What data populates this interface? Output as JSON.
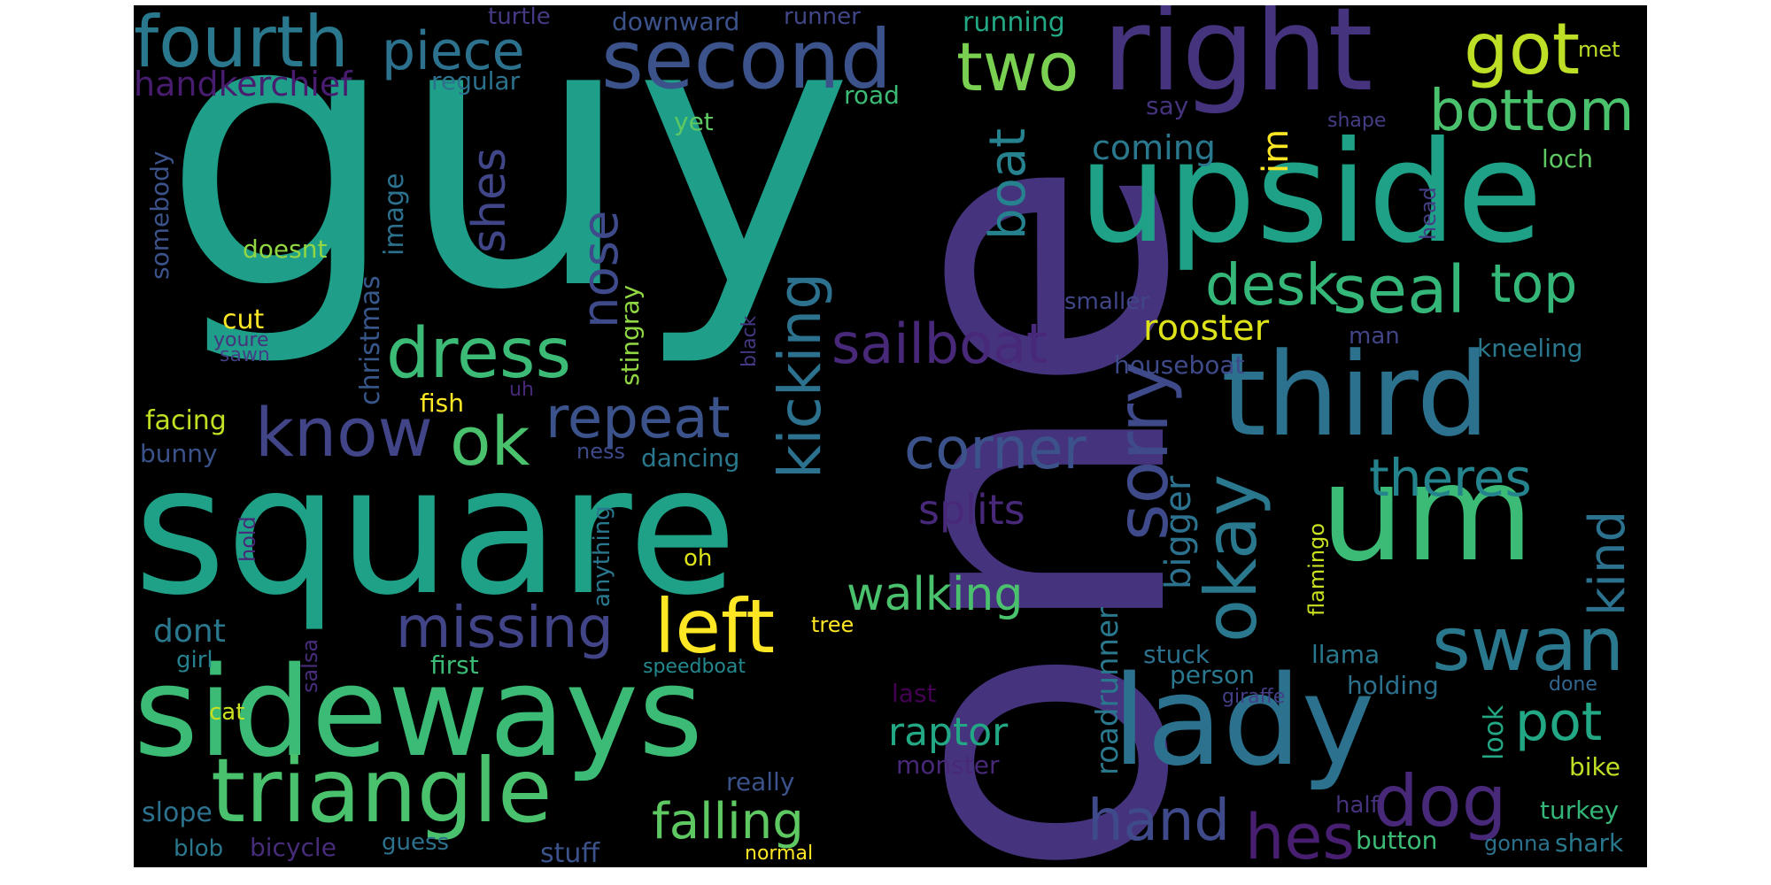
{
  "words": [
    {
      "text": "guy",
      "color": "#1f9e89"
    },
    {
      "text": "one",
      "color": "#46337e"
    },
    {
      "text": "square",
      "color": "#1fa188"
    },
    {
      "text": "sideways",
      "color": "#3bbb75"
    },
    {
      "text": "upside",
      "color": "#1fa188"
    },
    {
      "text": "right",
      "color": "#46337e"
    },
    {
      "text": "third",
      "color": "#2c728e"
    },
    {
      "text": "um",
      "color": "#3bbb75"
    },
    {
      "text": "lady",
      "color": "#2c728e"
    },
    {
      "text": "triangle",
      "color": "#4ac16d"
    },
    {
      "text": "second",
      "color": "#3b528b"
    },
    {
      "text": "fourth",
      "color": "#2a788e"
    },
    {
      "text": "piece",
      "color": "#2c728e"
    },
    {
      "text": "two",
      "color": "#7ad151"
    },
    {
      "text": "got",
      "color": "#bddf26"
    },
    {
      "text": "bottom",
      "color": "#4ac16d"
    },
    {
      "text": "dress",
      "color": "#3bbb75"
    },
    {
      "text": "know",
      "color": "#414487"
    },
    {
      "text": "ok",
      "color": "#4ac16d"
    },
    {
      "text": "left",
      "color": "#fde725"
    },
    {
      "text": "missing",
      "color": "#414487"
    },
    {
      "text": "sailboat",
      "color": "#482878"
    },
    {
      "text": "corner",
      "color": "#3b528b"
    },
    {
      "text": "repeat",
      "color": "#3b528b"
    },
    {
      "text": "kicking",
      "color": "#2c728e"
    },
    {
      "text": "sorry",
      "color": "#3e4a89"
    },
    {
      "text": "okay",
      "color": "#2a788e"
    },
    {
      "text": "swan",
      "color": "#2a788e"
    },
    {
      "text": "seal",
      "color": "#35b779"
    },
    {
      "text": "desk",
      "color": "#35b779"
    },
    {
      "text": "top",
      "color": "#35b779"
    },
    {
      "text": "dog",
      "color": "#482878"
    },
    {
      "text": "pot",
      "color": "#22a884"
    },
    {
      "text": "hand",
      "color": "#3e4a89"
    },
    {
      "text": "hes",
      "color": "#481f70"
    },
    {
      "text": "falling",
      "color": "#5ec962"
    },
    {
      "text": "walking",
      "color": "#4ac16d"
    },
    {
      "text": "theres",
      "color": "#25838e"
    },
    {
      "text": "kind",
      "color": "#2c728e"
    },
    {
      "text": "boat",
      "color": "#26828e"
    },
    {
      "text": "nose",
      "color": "#3e4a89"
    },
    {
      "text": "shes",
      "color": "#404688"
    },
    {
      "text": "splits",
      "color": "#482878"
    },
    {
      "text": "raptor",
      "color": "#22a884"
    },
    {
      "text": "rooster",
      "color": "#dde318"
    },
    {
      "text": "coming",
      "color": "#2a788e"
    },
    {
      "text": "bigger",
      "color": "#2c728e"
    },
    {
      "text": "dont",
      "color": "#2a788e"
    },
    {
      "text": "im",
      "color": "#fde725"
    },
    {
      "text": "handkerchief",
      "color": "#481c6e"
    },
    {
      "text": "roadrunner",
      "color": "#2a788e"
    },
    {
      "text": "houseboat",
      "color": "#3e4a89"
    },
    {
      "text": "kneeling",
      "color": "#2a788e"
    },
    {
      "text": "smaller",
      "color": "#404688"
    },
    {
      "text": "man",
      "color": "#414487"
    },
    {
      "text": "loch",
      "color": "#5ec962"
    },
    {
      "text": "head",
      "color": "#433e85"
    },
    {
      "text": "shape",
      "color": "#433e85"
    },
    {
      "text": "met",
      "color": "#bddf26"
    },
    {
      "text": "say",
      "color": "#46337e"
    },
    {
      "text": "running",
      "color": "#22a884"
    },
    {
      "text": "runner",
      "color": "#404688"
    },
    {
      "text": "downward",
      "color": "#3b528b"
    },
    {
      "text": "turtle",
      "color": "#443983"
    },
    {
      "text": "regular",
      "color": "#2c728e"
    },
    {
      "text": "road",
      "color": "#3bbb75"
    },
    {
      "text": "yet",
      "color": "#5ec962"
    },
    {
      "text": "image",
      "color": "#2c728e"
    },
    {
      "text": "christmas",
      "color": "#38588c"
    },
    {
      "text": "somebody",
      "color": "#3b528b"
    },
    {
      "text": "doesnt",
      "color": "#90d743"
    },
    {
      "text": "cut",
      "color": "#fde725"
    },
    {
      "text": "youre",
      "color": "#46337e"
    },
    {
      "text": "sawn",
      "color": "#433e85"
    },
    {
      "text": "stingray",
      "color": "#90d743"
    },
    {
      "text": "black",
      "color": "#453781"
    },
    {
      "text": "fish",
      "color": "#fde725"
    },
    {
      "text": "uh",
      "color": "#482878"
    },
    {
      "text": "facing",
      "color": "#c2df23"
    },
    {
      "text": "bunny",
      "color": "#3b528b"
    },
    {
      "text": "ness",
      "color": "#3e4a89"
    },
    {
      "text": "dancing",
      "color": "#2a788e"
    },
    {
      "text": "hold",
      "color": "#482878"
    },
    {
      "text": "anything",
      "color": "#2a788e"
    },
    {
      "text": "oh",
      "color": "#dde318"
    },
    {
      "text": "flamingo",
      "color": "#cae11f"
    },
    {
      "text": "tree",
      "color": "#fde725"
    },
    {
      "text": "salsa",
      "color": "#472d7b"
    },
    {
      "text": "girl",
      "color": "#26828e"
    },
    {
      "text": "first",
      "color": "#3bbb75"
    },
    {
      "text": "cat",
      "color": "#c8e020"
    },
    {
      "text": "speedboat",
      "color": "#23898e"
    },
    {
      "text": "stuck",
      "color": "#2c728e"
    },
    {
      "text": "llama",
      "color": "#2a788e"
    },
    {
      "text": "person",
      "color": "#2a788e"
    },
    {
      "text": "giraffe",
      "color": "#433e85"
    },
    {
      "text": "holding",
      "color": "#2c728e"
    },
    {
      "text": "done",
      "color": "#31668e"
    },
    {
      "text": "look",
      "color": "#22a884"
    },
    {
      "text": "last",
      "color": "#440154"
    },
    {
      "text": "monster",
      "color": "#482878"
    },
    {
      "text": "bike",
      "color": "#bddf26"
    },
    {
      "text": "really",
      "color": "#3b528b"
    },
    {
      "text": "slope",
      "color": "#2c728e"
    },
    {
      "text": "half",
      "color": "#46337e"
    },
    {
      "text": "turkey",
      "color": "#35b779"
    },
    {
      "text": "blob",
      "color": "#2a788e"
    },
    {
      "text": "bicycle",
      "color": "#472c7a"
    },
    {
      "text": "guess",
      "color": "#2c728e"
    },
    {
      "text": "stuff",
      "color": "#3b528b"
    },
    {
      "text": "normal",
      "color": "#fde725"
    },
    {
      "text": "button",
      "color": "#3bbb75"
    },
    {
      "text": "gonna",
      "color": "#2c728e"
    },
    {
      "text": "shark",
      "color": "#2a788e"
    }
  ]
}
